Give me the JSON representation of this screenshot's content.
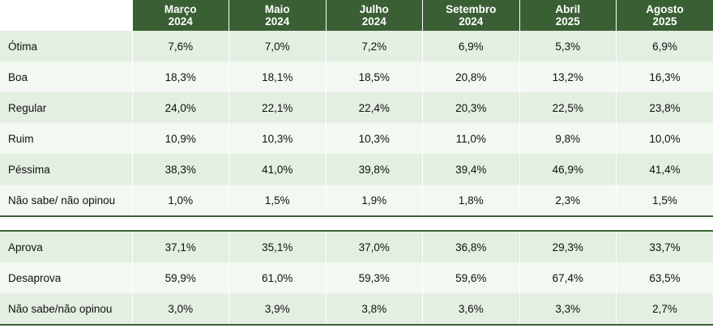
{
  "columns": [
    {
      "month": "Março",
      "year": "2024"
    },
    {
      "month": "Maio",
      "year": "2024"
    },
    {
      "month": "Julho",
      "year": "2024"
    },
    {
      "month": "Setembro",
      "year": "2024"
    },
    {
      "month": "Abril",
      "year": "2025"
    },
    {
      "month": "Agosto",
      "year": "2025"
    }
  ],
  "evaluation_rows": [
    {
      "label": "Ótima",
      "values": [
        "7,6%",
        "7,0%",
        "7,2%",
        "6,9%",
        "5,3%",
        "6,9%"
      ]
    },
    {
      "label": "Boa",
      "values": [
        "18,3%",
        "18,1%",
        "18,5%",
        "20,8%",
        "13,2%",
        "16,3%"
      ]
    },
    {
      "label": "Regular",
      "values": [
        "24,0%",
        "22,1%",
        "22,4%",
        "20,3%",
        "22,5%",
        "23,8%"
      ]
    },
    {
      "label": "Ruim",
      "values": [
        "10,9%",
        "10,3%",
        "10,3%",
        "11,0%",
        "9,8%",
        "10,0%"
      ]
    },
    {
      "label": "Péssima",
      "values": [
        "38,3%",
        "41,0%",
        "39,8%",
        "39,4%",
        "46,9%",
        "41,4%"
      ]
    },
    {
      "label": "Não sabe/ não opinou",
      "values": [
        "1,0%",
        "1,5%",
        "1,9%",
        "1,8%",
        "2,3%",
        "1,5%"
      ]
    }
  ],
  "approval_rows": [
    {
      "label": "Aprova",
      "values": [
        "37,1%",
        "35,1%",
        "37,0%",
        "36,8%",
        "29,3%",
        "33,7%"
      ]
    },
    {
      "label": "Desaprova",
      "values": [
        "59,9%",
        "61,0%",
        "59,3%",
        "59,6%",
        "67,4%",
        "63,5%"
      ]
    },
    {
      "label": "Não sabe/não opinou",
      "values": [
        "3,0%",
        "3,9%",
        "3,8%",
        "3,6%",
        "3,3%",
        "2,7%"
      ]
    }
  ]
}
